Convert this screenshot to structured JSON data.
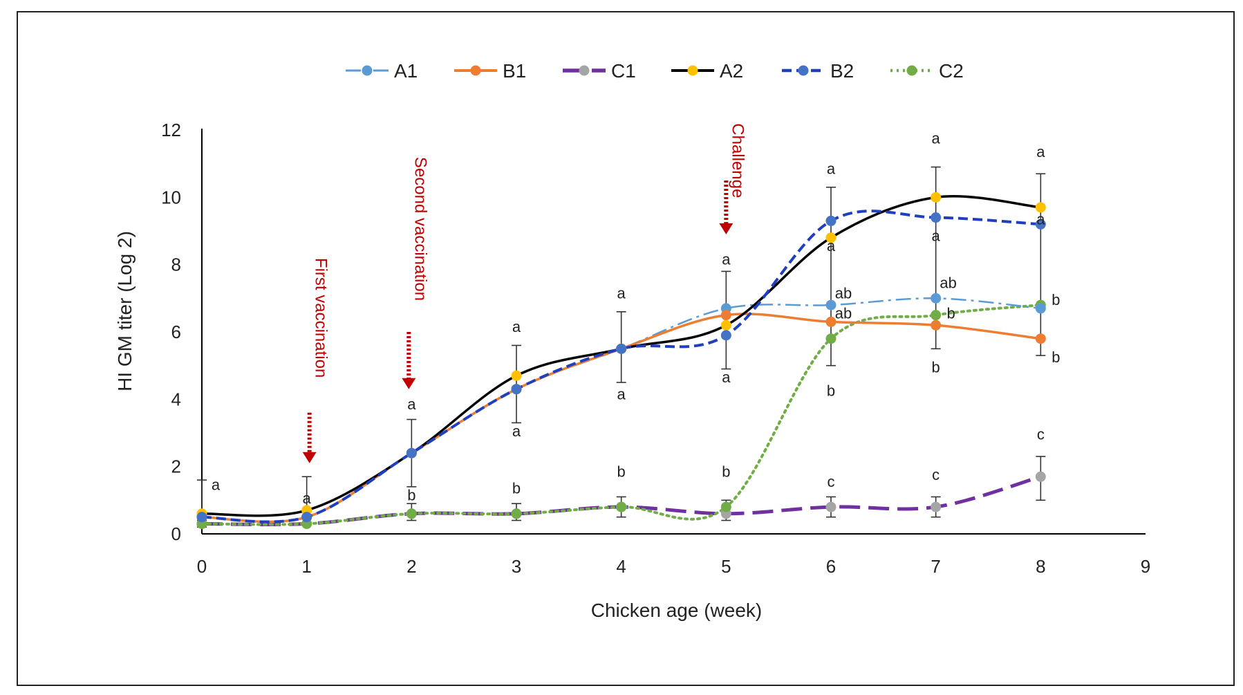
{
  "chart_data": {
    "type": "line",
    "xlabel": "Chicken age (week)",
    "ylabel": "HI GM titer (Log 2)",
    "xlim": [
      0,
      9
    ],
    "ylim": [
      0,
      12
    ],
    "x_ticks": [
      "0",
      "1",
      "2",
      "3",
      "4",
      "5",
      "6",
      "7",
      "8",
      "9"
    ],
    "y_ticks": [
      "0",
      "2",
      "4",
      "6",
      "8",
      "10",
      "12"
    ],
    "legend_position": "top",
    "series": [
      {
        "name": "A1",
        "color": "#5b9bd5",
        "marker_color": "#5b9bd5",
        "dash": "dashdot",
        "x": [
          0,
          1,
          2,
          3,
          4,
          5,
          6,
          7,
          8
        ],
        "y": [
          0.5,
          0.5,
          2.4,
          4.3,
          5.5,
          6.7,
          6.8,
          7.0,
          6.7
        ]
      },
      {
        "name": "B1",
        "color": "#ed7d31",
        "marker_color": "#ed7d31",
        "dash": "solid",
        "x": [
          0,
          1,
          2,
          3,
          4,
          5,
          6,
          7,
          8
        ],
        "y": [
          0.5,
          0.5,
          2.4,
          4.3,
          5.5,
          6.5,
          6.3,
          6.2,
          5.8
        ]
      },
      {
        "name": "C1",
        "color": "#7030a0",
        "marker_color": "#a5a5a5",
        "dash": "longdash",
        "x": [
          0,
          1,
          2,
          3,
          4,
          5,
          6,
          7,
          8
        ],
        "y": [
          0.3,
          0.3,
          0.6,
          0.6,
          0.8,
          0.6,
          0.8,
          0.8,
          1.7
        ]
      },
      {
        "name": "A2",
        "color": "#000000",
        "marker_color": "#ffc000",
        "dash": "solid",
        "x": [
          0,
          1,
          2,
          3,
          4,
          5,
          6,
          7,
          8
        ],
        "y": [
          0.6,
          0.7,
          2.4,
          4.7,
          5.5,
          6.2,
          8.8,
          10.0,
          9.7
        ]
      },
      {
        "name": "B2",
        "color": "#1f3fbf",
        "marker_color": "#4472c4",
        "dash": "dash",
        "x": [
          0,
          1,
          2,
          3,
          4,
          5,
          6,
          7,
          8
        ],
        "y": [
          0.5,
          0.5,
          2.4,
          4.3,
          5.5,
          5.9,
          9.3,
          9.4,
          9.2
        ]
      },
      {
        "name": "C2",
        "color": "#70ad47",
        "marker_color": "#70ad47",
        "dash": "dot",
        "x": [
          0,
          1,
          2,
          3,
          4,
          5,
          6,
          7,
          8
        ],
        "y": [
          0.3,
          0.3,
          0.6,
          0.6,
          0.8,
          0.8,
          5.8,
          6.5,
          6.8
        ]
      }
    ],
    "error_bars": [
      {
        "x": 0,
        "low": 0.4,
        "high": 1.6
      },
      {
        "x": 1,
        "low": 0.3,
        "high": 1.7
      },
      {
        "x": 2,
        "low": 1.4,
        "high": 3.4
      },
      {
        "x": 3,
        "low": 3.3,
        "high": 5.6
      },
      {
        "x": 4,
        "low": 4.5,
        "high": 6.6
      },
      {
        "x": 5,
        "low": 4.9,
        "high": 7.8
      },
      {
        "x": 6,
        "low": 5.0,
        "high": 10.3
      },
      {
        "x": 7,
        "low": 5.5,
        "high": 10.9
      },
      {
        "x": 8,
        "low": 5.3,
        "high": 10.7
      },
      {
        "x": 0,
        "low": 0.2,
        "high": 0.5
      },
      {
        "x": 2,
        "low": 0.4,
        "high": 0.9
      },
      {
        "x": 3,
        "low": 0.4,
        "high": 0.9
      },
      {
        "x": 4,
        "low": 0.5,
        "high": 1.1
      },
      {
        "x": 5,
        "low": 0.4,
        "high": 1.0
      },
      {
        "x": 6,
        "low": 0.5,
        "high": 1.1
      },
      {
        "x": 7,
        "low": 0.5,
        "high": 1.1
      },
      {
        "x": 8,
        "low": 1.0,
        "high": 2.3
      }
    ],
    "significance_labels": [
      {
        "x": 0,
        "y": 1.3,
        "text": "a"
      },
      {
        "x": 1,
        "y": 0.9,
        "text": "a"
      },
      {
        "x": 2,
        "y": 3.7,
        "text": "a"
      },
      {
        "x": 2,
        "y": 1.0,
        "text": "b"
      },
      {
        "x": 3,
        "y": 6.0,
        "text": "a"
      },
      {
        "x": 3,
        "y": 2.9,
        "text": "a"
      },
      {
        "x": 3,
        "y": 1.2,
        "text": "b"
      },
      {
        "x": 4,
        "y": 7.0,
        "text": "a"
      },
      {
        "x": 4,
        "y": 4.0,
        "text": "a"
      },
      {
        "x": 4,
        "y": 1.7,
        "text": "b"
      },
      {
        "x": 5,
        "y": 8.0,
        "text": "a"
      },
      {
        "x": 5,
        "y": 4.5,
        "text": "a"
      },
      {
        "x": 5,
        "y": 1.7,
        "text": "b"
      },
      {
        "x": 6,
        "y": 10.7,
        "text": "a"
      },
      {
        "x": 6,
        "y": 8.4,
        "text": "a"
      },
      {
        "x": 6,
        "y": 7.0,
        "text": "ab"
      },
      {
        "x": 6,
        "y": 6.4,
        "text": "ab"
      },
      {
        "x": 6,
        "y": 4.1,
        "text": "b"
      },
      {
        "x": 6,
        "y": 1.4,
        "text": "c"
      },
      {
        "x": 7,
        "y": 11.6,
        "text": "a"
      },
      {
        "x": 7,
        "y": 8.7,
        "text": "a"
      },
      {
        "x": 7,
        "y": 7.3,
        "text": "ab"
      },
      {
        "x": 7,
        "y": 6.4,
        "text": "b"
      },
      {
        "x": 7,
        "y": 4.8,
        "text": "b"
      },
      {
        "x": 7,
        "y": 1.6,
        "text": "c"
      },
      {
        "x": 8,
        "y": 11.2,
        "text": "a"
      },
      {
        "x": 8,
        "y": 9.2,
        "text": "a"
      },
      {
        "x": 8,
        "y": 6.8,
        "text": "b"
      },
      {
        "x": 8,
        "y": 5.1,
        "text": "b"
      },
      {
        "x": 8,
        "y": 2.8,
        "text": "c"
      }
    ],
    "annotations": [
      {
        "text": "First vaccination",
        "x": 1
      },
      {
        "text": "Second vaccination",
        "x": 2
      },
      {
        "text": "Challenge",
        "x": 5
      }
    ],
    "annotation_color": "#c00000"
  }
}
